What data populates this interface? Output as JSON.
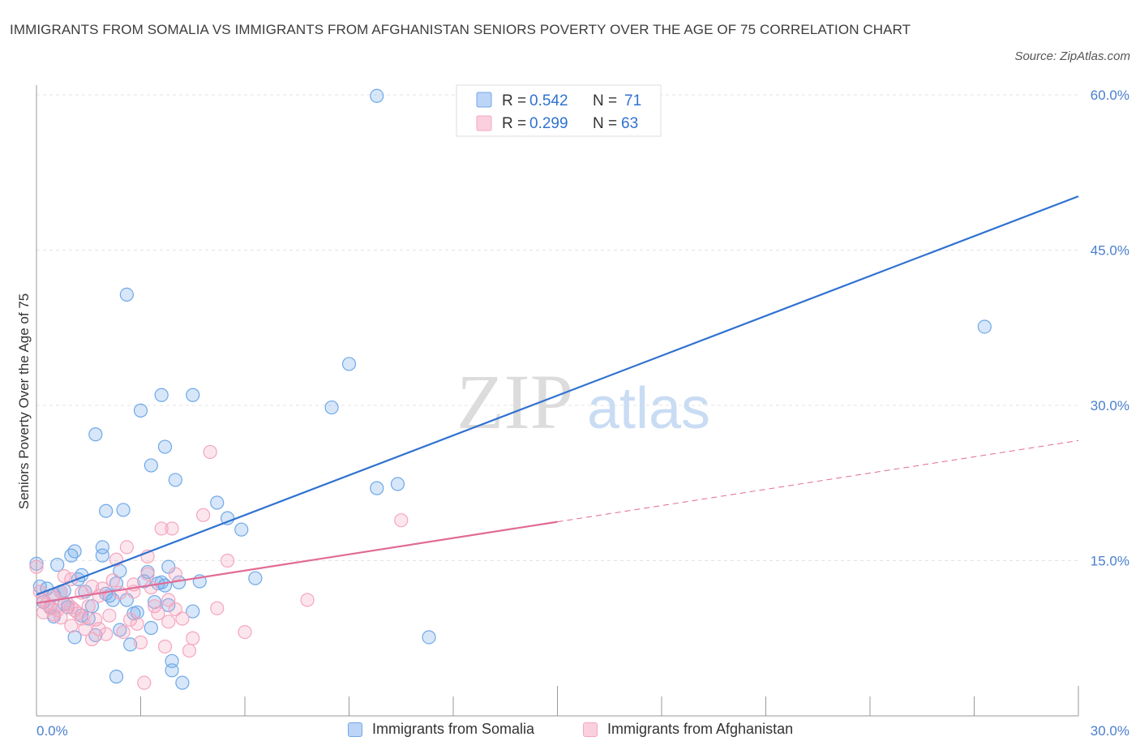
{
  "chart_data": {
    "type": "scatter",
    "title": "IMMIGRANTS FROM SOMALIA VS IMMIGRANTS FROM AFGHANISTAN SENIORS POVERTY OVER THE AGE OF 75 CORRELATION CHART",
    "source": "Source: ZipAtlas.com",
    "ylabel": "Seniors Poverty Over the Age of 75",
    "xlim": [
      0,
      30
    ],
    "ylim": [
      0,
      60
    ],
    "x_tick_labels": [
      {
        "value": 0,
        "label": "0.0%"
      },
      {
        "value": 30,
        "label": "30.0%"
      }
    ],
    "y_tick_labels": [
      {
        "value": 15,
        "label": "15.0%"
      },
      {
        "value": 30,
        "label": "30.0%"
      },
      {
        "value": 45,
        "label": "45.0%"
      },
      {
        "value": 60,
        "label": "60.0%"
      }
    ],
    "watermark": {
      "zip": "ZIP",
      "atlas": "atlas"
    },
    "legend": [
      {
        "r_label": "R =",
        "r_value": "0.542",
        "n_label": "N =",
        "n_value": "71"
      },
      {
        "r_label": "R =",
        "r_value": "0.299",
        "n_label": "N =",
        "n_value": "63"
      }
    ],
    "series": [
      {
        "name": "Immigrants from Somalia",
        "color": "#6fa8e8",
        "line_color": "#2f72d0",
        "trend": {
          "x0": 0,
          "y0": 11.7,
          "x1": 30,
          "y1": 50.2,
          "solid_to": 30
        },
        "points": [
          [
            0.0,
            14.7
          ],
          [
            0.1,
            12.5
          ],
          [
            0.2,
            11.0
          ],
          [
            0.3,
            12.3
          ],
          [
            0.4,
            10.5
          ],
          [
            0.5,
            11.7
          ],
          [
            0.6,
            14.6
          ],
          [
            0.7,
            12.0
          ],
          [
            0.8,
            10.8
          ],
          [
            0.9,
            10.5
          ],
          [
            1.0,
            15.5
          ],
          [
            1.1,
            15.9
          ],
          [
            1.2,
            13.2
          ],
          [
            1.3,
            13.6
          ],
          [
            1.4,
            12.0
          ],
          [
            1.5,
            9.4
          ],
          [
            1.6,
            10.6
          ],
          [
            0.5,
            9.6
          ],
          [
            1.1,
            7.6
          ],
          [
            1.7,
            7.8
          ],
          [
            1.7,
            27.2
          ],
          [
            1.9,
            16.3
          ],
          [
            1.9,
            15.5
          ],
          [
            2.0,
            19.8
          ],
          [
            2.0,
            11.8
          ],
          [
            2.1,
            11.6
          ],
          [
            2.2,
            11.2
          ],
          [
            2.3,
            12.8
          ],
          [
            2.3,
            3.8
          ],
          [
            2.4,
            14.0
          ],
          [
            2.4,
            8.3
          ],
          [
            2.5,
            19.9
          ],
          [
            2.6,
            40.7
          ],
          [
            2.6,
            11.2
          ],
          [
            2.7,
            6.9
          ],
          [
            2.8,
            9.9
          ],
          [
            3.0,
            29.5
          ],
          [
            3.1,
            13.0
          ],
          [
            3.2,
            13.9
          ],
          [
            3.3,
            24.2
          ],
          [
            3.3,
            8.5
          ],
          [
            3.4,
            11.0
          ],
          [
            3.5,
            12.8
          ],
          [
            3.6,
            12.9
          ],
          [
            3.6,
            31.0
          ],
          [
            3.7,
            12.6
          ],
          [
            3.7,
            26.0
          ],
          [
            3.8,
            14.4
          ],
          [
            3.8,
            10.7
          ],
          [
            3.9,
            5.3
          ],
          [
            3.9,
            4.4
          ],
          [
            4.0,
            22.8
          ],
          [
            4.1,
            12.9
          ],
          [
            4.2,
            3.2
          ],
          [
            4.5,
            31.0
          ],
          [
            4.5,
            10.1
          ],
          [
            4.7,
            13.0
          ],
          [
            5.2,
            20.6
          ],
          [
            5.5,
            19.1
          ],
          [
            5.9,
            18.0
          ],
          [
            6.3,
            13.3
          ],
          [
            8.5,
            29.8
          ],
          [
            9.0,
            34.0
          ],
          [
            9.8,
            59.9
          ],
          [
            9.8,
            22.0
          ],
          [
            10.4,
            22.4
          ],
          [
            11.3,
            7.6
          ],
          [
            27.3,
            37.6
          ],
          [
            0.8,
            12.1
          ],
          [
            1.3,
            9.7
          ],
          [
            2.9,
            10.0
          ]
        ]
      },
      {
        "name": "Immigrants from Afghanistan",
        "color": "#f4a6bf",
        "line_color": "#e06b96",
        "trend": {
          "x0": 0,
          "y0": 10.9,
          "x1": 30,
          "y1": 26.6,
          "solid_to": 15
        },
        "points": [
          [
            0.0,
            14.4
          ],
          [
            0.1,
            12.0
          ],
          [
            0.2,
            11.2
          ],
          [
            0.2,
            10.0
          ],
          [
            0.3,
            10.8
          ],
          [
            0.4,
            10.4
          ],
          [
            0.5,
            11.4
          ],
          [
            0.5,
            9.8
          ],
          [
            0.6,
            10.2
          ],
          [
            0.7,
            9.5
          ],
          [
            0.7,
            12.0
          ],
          [
            0.8,
            13.5
          ],
          [
            0.9,
            10.8
          ],
          [
            1.0,
            13.2
          ],
          [
            1.0,
            8.7
          ],
          [
            1.1,
            10.2
          ],
          [
            1.2,
            9.9
          ],
          [
            1.3,
            11.9
          ],
          [
            1.3,
            9.4
          ],
          [
            1.4,
            8.4
          ],
          [
            1.5,
            10.6
          ],
          [
            1.6,
            12.5
          ],
          [
            1.6,
            7.4
          ],
          [
            1.7,
            9.3
          ],
          [
            1.8,
            11.6
          ],
          [
            1.8,
            8.4
          ],
          [
            1.9,
            12.3
          ],
          [
            2.0,
            7.9
          ],
          [
            2.1,
            9.7
          ],
          [
            2.2,
            13.1
          ],
          [
            2.3,
            15.1
          ],
          [
            2.4,
            11.9
          ],
          [
            2.5,
            8.1
          ],
          [
            2.6,
            16.3
          ],
          [
            2.7,
            9.3
          ],
          [
            2.8,
            12.7
          ],
          [
            2.9,
            8.9
          ],
          [
            3.0,
            7.1
          ],
          [
            3.1,
            3.2
          ],
          [
            3.2,
            15.4
          ],
          [
            3.2,
            13.7
          ],
          [
            3.3,
            12.4
          ],
          [
            3.4,
            10.6
          ],
          [
            3.5,
            9.9
          ],
          [
            3.6,
            18.1
          ],
          [
            3.7,
            6.7
          ],
          [
            3.8,
            9.1
          ],
          [
            3.9,
            18.1
          ],
          [
            4.0,
            13.7
          ],
          [
            4.0,
            10.3
          ],
          [
            4.2,
            9.4
          ],
          [
            4.4,
            6.3
          ],
          [
            4.5,
            7.5
          ],
          [
            4.8,
            19.4
          ],
          [
            5.0,
            25.5
          ],
          [
            5.2,
            10.4
          ],
          [
            5.5,
            15.0
          ],
          [
            6.0,
            8.1
          ],
          [
            7.8,
            11.2
          ],
          [
            10.5,
            18.9
          ],
          [
            3.8,
            11.2
          ],
          [
            2.8,
            12.0
          ],
          [
            1.0,
            10.5
          ]
        ]
      }
    ]
  }
}
